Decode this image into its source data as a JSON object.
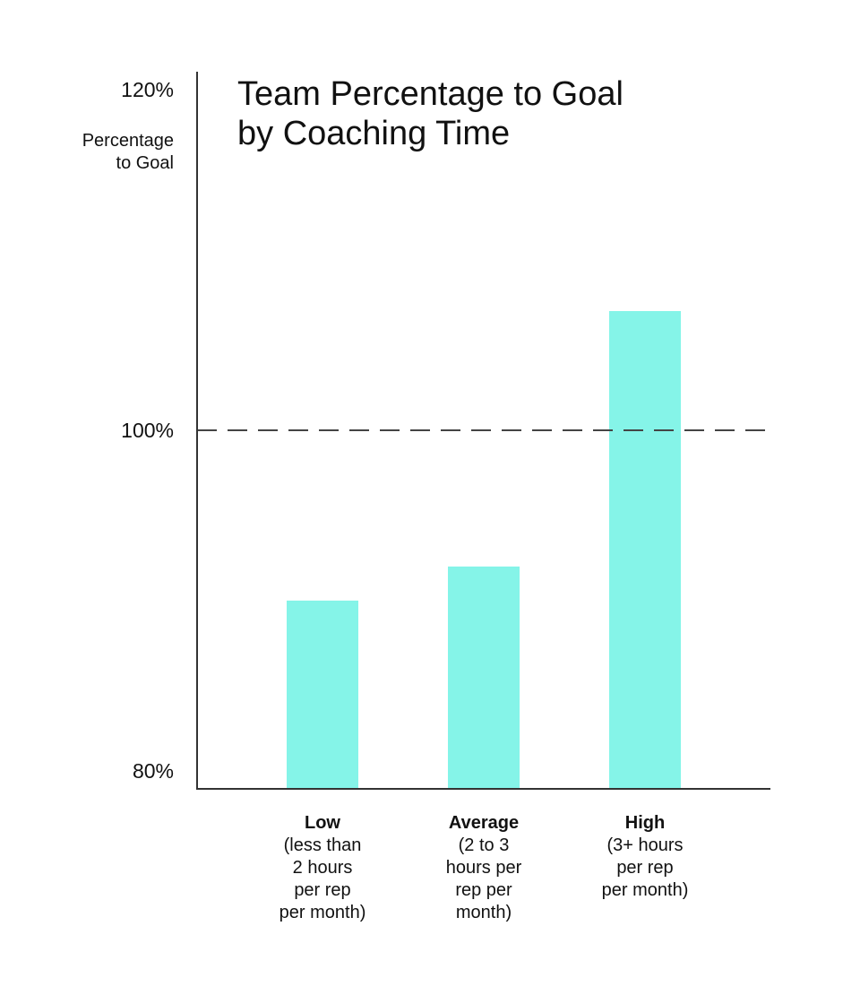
{
  "chart_data": {
    "type": "bar",
    "title": [
      "Team Percentage to Goal",
      "by Coaching Time"
    ],
    "ylabel": [
      "Percentage",
      "to Goal"
    ],
    "xlabel": "",
    "ylim": [
      80,
      120
    ],
    "yticks": [
      "80%",
      "100%",
      "120%"
    ],
    "reference_line": {
      "value": 100,
      "style": "dashed"
    },
    "categories": [
      {
        "name": "Low",
        "desc": [
          "(less than",
          "2 hours",
          "per rep",
          "per month)"
        ]
      },
      {
        "name": "Average",
        "desc": [
          "(2 to 3",
          "hours per",
          "rep per",
          "month)"
        ]
      },
      {
        "name": "High",
        "desc": [
          "(3+ hours",
          "per rep",
          "per month)"
        ]
      }
    ],
    "values": [
      90,
      92,
      107
    ],
    "grid": false,
    "legend": "none",
    "colors": {
      "bar": "#85F4E8",
      "axis": "#333333",
      "reference": "#444444"
    }
  }
}
